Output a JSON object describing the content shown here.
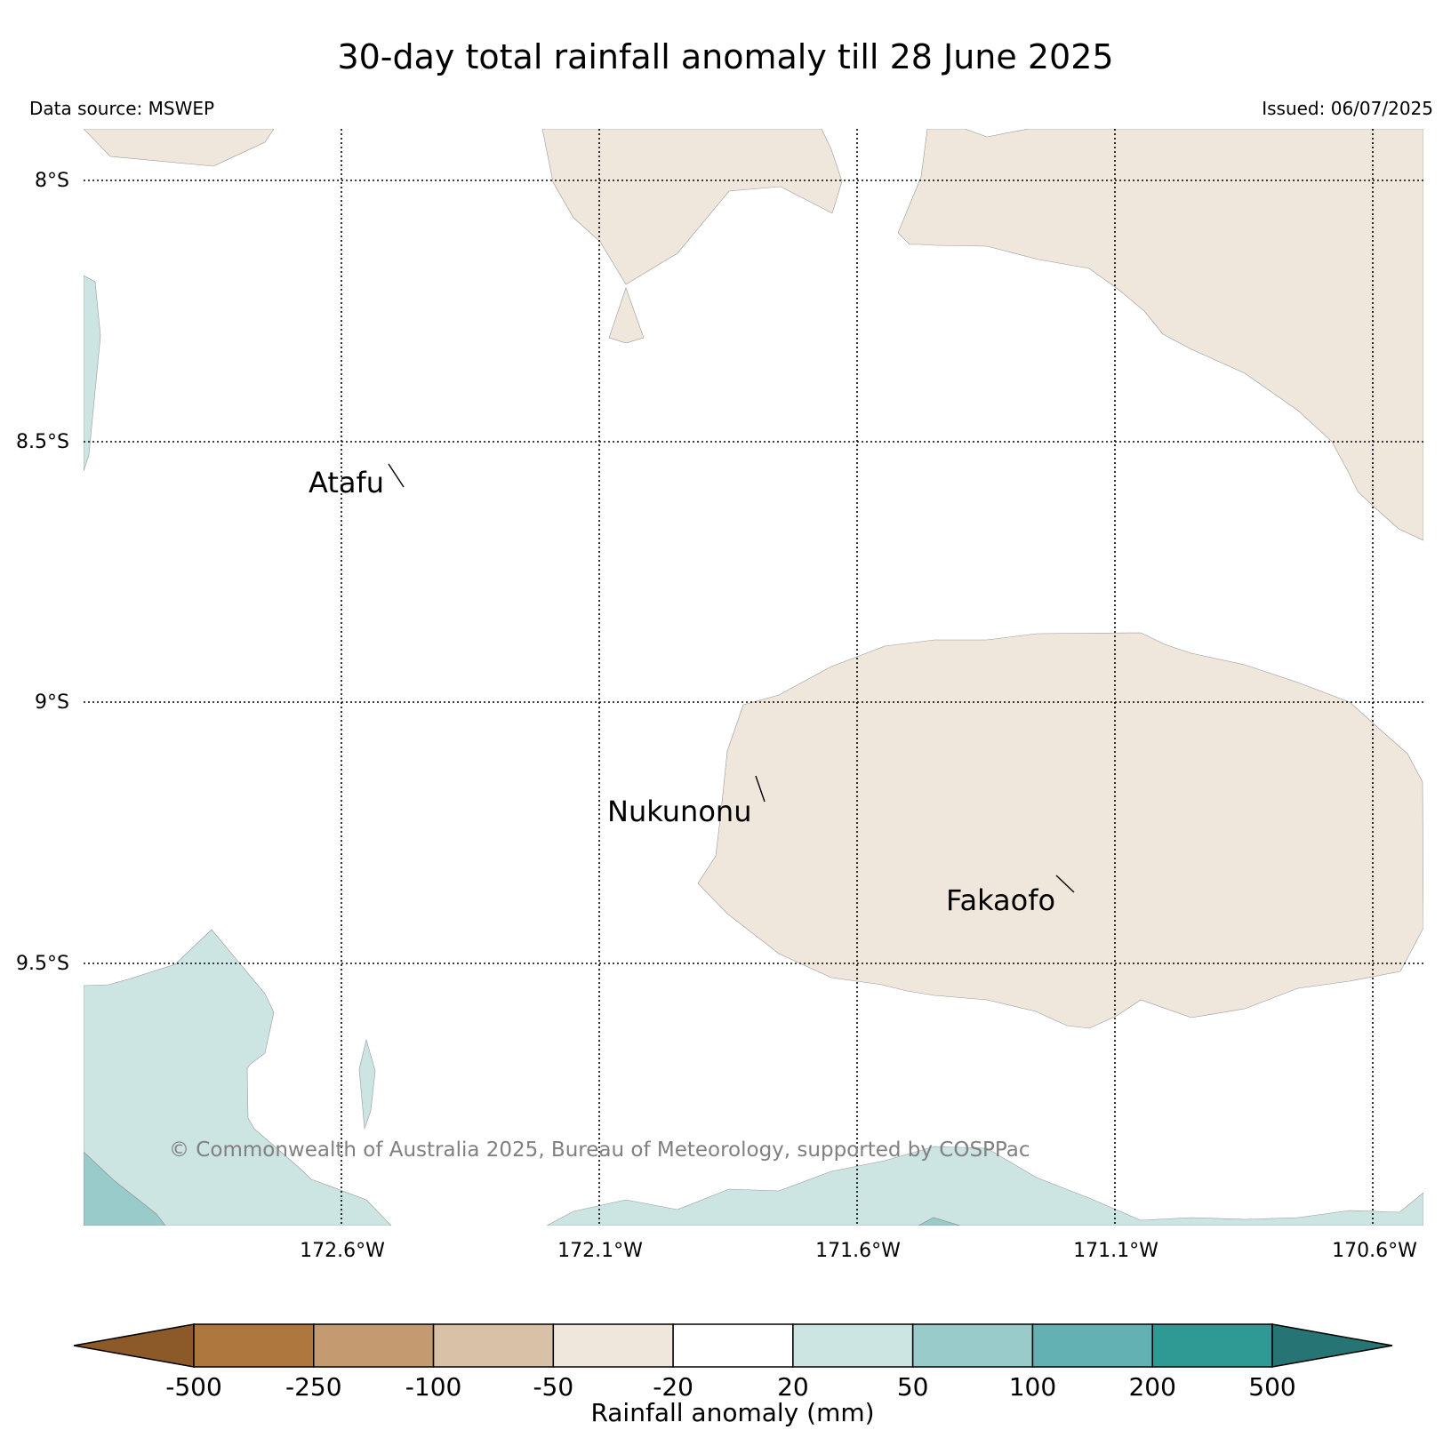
{
  "title": "30-day total rainfall anomaly till 28 June 2025",
  "data_source": "Data source: MSWEP",
  "issued": "Issued: 06/07/2025",
  "copyright": "© Commonwealth of Australia 2025, Bureau of Meteorology, supported by COSPPac",
  "lat_labels": [
    "8°S",
    "8.5°S",
    "9°S",
    "9.5°S"
  ],
  "lon_labels": [
    "172.6°W",
    "172.1°W",
    "171.6°W",
    "171.1°W",
    "170.6°W"
  ],
  "places": [
    {
      "name": "Atafu"
    },
    {
      "name": "Nukunonu"
    },
    {
      "name": "Fakaofo"
    }
  ],
  "colorbar": {
    "label": "Rainfall anomaly (mm)",
    "ticks": [
      "-500",
      "-250",
      "-100",
      "-50",
      "-20",
      "20",
      "50",
      "100",
      "200",
      "500"
    ],
    "colors": [
      "#8c5a28",
      "#ae773d",
      "#c49b71",
      "#d9c1a7",
      "#efe6dc",
      "#ffffff",
      "#cce4e2",
      "#98cbca",
      "#63b1b2",
      "#2f9994",
      "#267574"
    ]
  },
  "fill_colors": {
    "dry_light": "#efe6dc",
    "wet_light": "#cce4e2",
    "wet_medium": "#98cbca"
  }
}
